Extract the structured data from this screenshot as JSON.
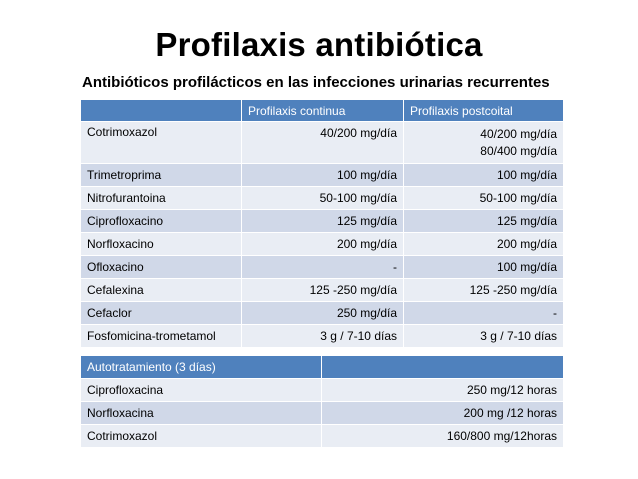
{
  "title": "Profilaxis antibiótica",
  "subtitle": "Antibióticos profilácticos en las infecciones urinarias recurrentes",
  "main_table": {
    "headers": [
      "",
      "Profilaxis continua",
      "Profilaxis postcoital"
    ],
    "rows": [
      {
        "drug": "Cotrimoxazol",
        "continua": "40/200 mg/día",
        "postcoital": [
          "40/200 mg/día",
          "80/400 mg/día"
        ]
      },
      {
        "drug": "Trimetroprima",
        "continua": "100 mg/día",
        "postcoital": [
          "100 mg/día"
        ]
      },
      {
        "drug": "Nitrofurantoina",
        "continua": "50-100 mg/día",
        "postcoital": [
          "50-100 mg/día"
        ]
      },
      {
        "drug": "Ciprofloxacino",
        "continua": "125 mg/día",
        "postcoital": [
          "125 mg/día"
        ]
      },
      {
        "drug": "Norfloxacino",
        "continua": "200 mg/día",
        "postcoital": [
          "200 mg/día"
        ]
      },
      {
        "drug": "Ofloxacino",
        "continua": "-",
        "postcoital": [
          "100 mg/día"
        ]
      },
      {
        "drug": "Cefalexina",
        "continua": "125 -250 mg/día",
        "postcoital": [
          "125 -250 mg/día"
        ]
      },
      {
        "drug": "Cefaclor",
        "continua": "250 mg/día",
        "postcoital": [
          "-"
        ]
      },
      {
        "drug": "Fosfomicina-trometamol",
        "continua": "3 g / 7-10 días",
        "postcoital": [
          "3 g / 7-10 días"
        ]
      }
    ]
  },
  "auto_table": {
    "header": "Autotratamiento (3 días)",
    "rows": [
      {
        "drug": "Ciprofloxacina",
        "dose": "250 mg/12 horas"
      },
      {
        "drug": "Norfloxacina",
        "dose": "200 mg /12 horas"
      },
      {
        "drug": "Cotrimoxazol",
        "dose": "160/800 mg/12horas"
      }
    ]
  },
  "colors": {
    "header": "#4f81bd",
    "row_light": "#e9edf4",
    "row_dark": "#d0d8e8"
  }
}
